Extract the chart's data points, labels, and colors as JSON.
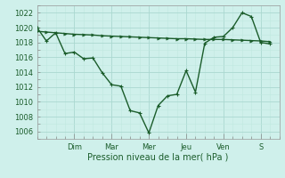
{
  "background_color": "#cff0eb",
  "grid_color_major": "#aad8d0",
  "grid_color_minor": "#c0e8e0",
  "line_color": "#1a5c2a",
  "xlabel": "Pression niveau de la mer( hPa )",
  "ylim": [
    1005.0,
    1023.0
  ],
  "yticks": [
    1006,
    1008,
    1010,
    1012,
    1014,
    1016,
    1018,
    1020,
    1022
  ],
  "day_labels": [
    "Dim",
    "Mar",
    "Mer",
    "Jeu",
    "Ven",
    "S"
  ],
  "day_positions": [
    2,
    4,
    6,
    8,
    10,
    12
  ],
  "xlim": [
    0,
    13
  ],
  "series1_x": [
    0,
    0.5,
    1,
    1.5,
    2,
    2.5,
    3,
    3.5,
    4,
    4.5,
    5,
    5.5,
    6,
    6.5,
    7,
    7.5,
    8,
    8.5,
    9,
    9.5,
    10,
    10.5,
    11,
    11.5,
    12,
    12.5
  ],
  "series1_y": [
    1019.5,
    1019.4,
    1019.3,
    1019.2,
    1019.1,
    1019.05,
    1019.0,
    1018.9,
    1018.85,
    1018.8,
    1018.75,
    1018.7,
    1018.65,
    1018.6,
    1018.55,
    1018.5,
    1018.5,
    1018.45,
    1018.4,
    1018.4,
    1018.4,
    1018.35,
    1018.3,
    1018.25,
    1018.2,
    1018.1
  ],
  "series2_x": [
    0,
    0.5,
    1,
    1.5,
    2,
    2.5,
    3,
    3.5,
    4,
    4.5,
    5,
    5.5,
    6,
    6.5,
    7,
    7.5,
    8,
    8.5,
    9,
    9.5,
    10,
    10.5,
    11,
    11.5,
    12,
    12.5
  ],
  "series2_y": [
    1020.0,
    1018.2,
    1019.3,
    1016.5,
    1016.7,
    1015.8,
    1015.9,
    1013.9,
    1012.3,
    1012.1,
    1008.8,
    1008.5,
    1005.8,
    1009.5,
    1010.8,
    1011.0,
    1014.2,
    1011.3,
    1017.9,
    1018.7,
    1018.8,
    1020.0,
    1022.0,
    1021.5,
    1018.0,
    1017.8
  ],
  "marker_size": 2.5,
  "line_width": 1.0,
  "ytick_fontsize": 6,
  "xtick_fontsize": 6,
  "xlabel_fontsize": 7
}
